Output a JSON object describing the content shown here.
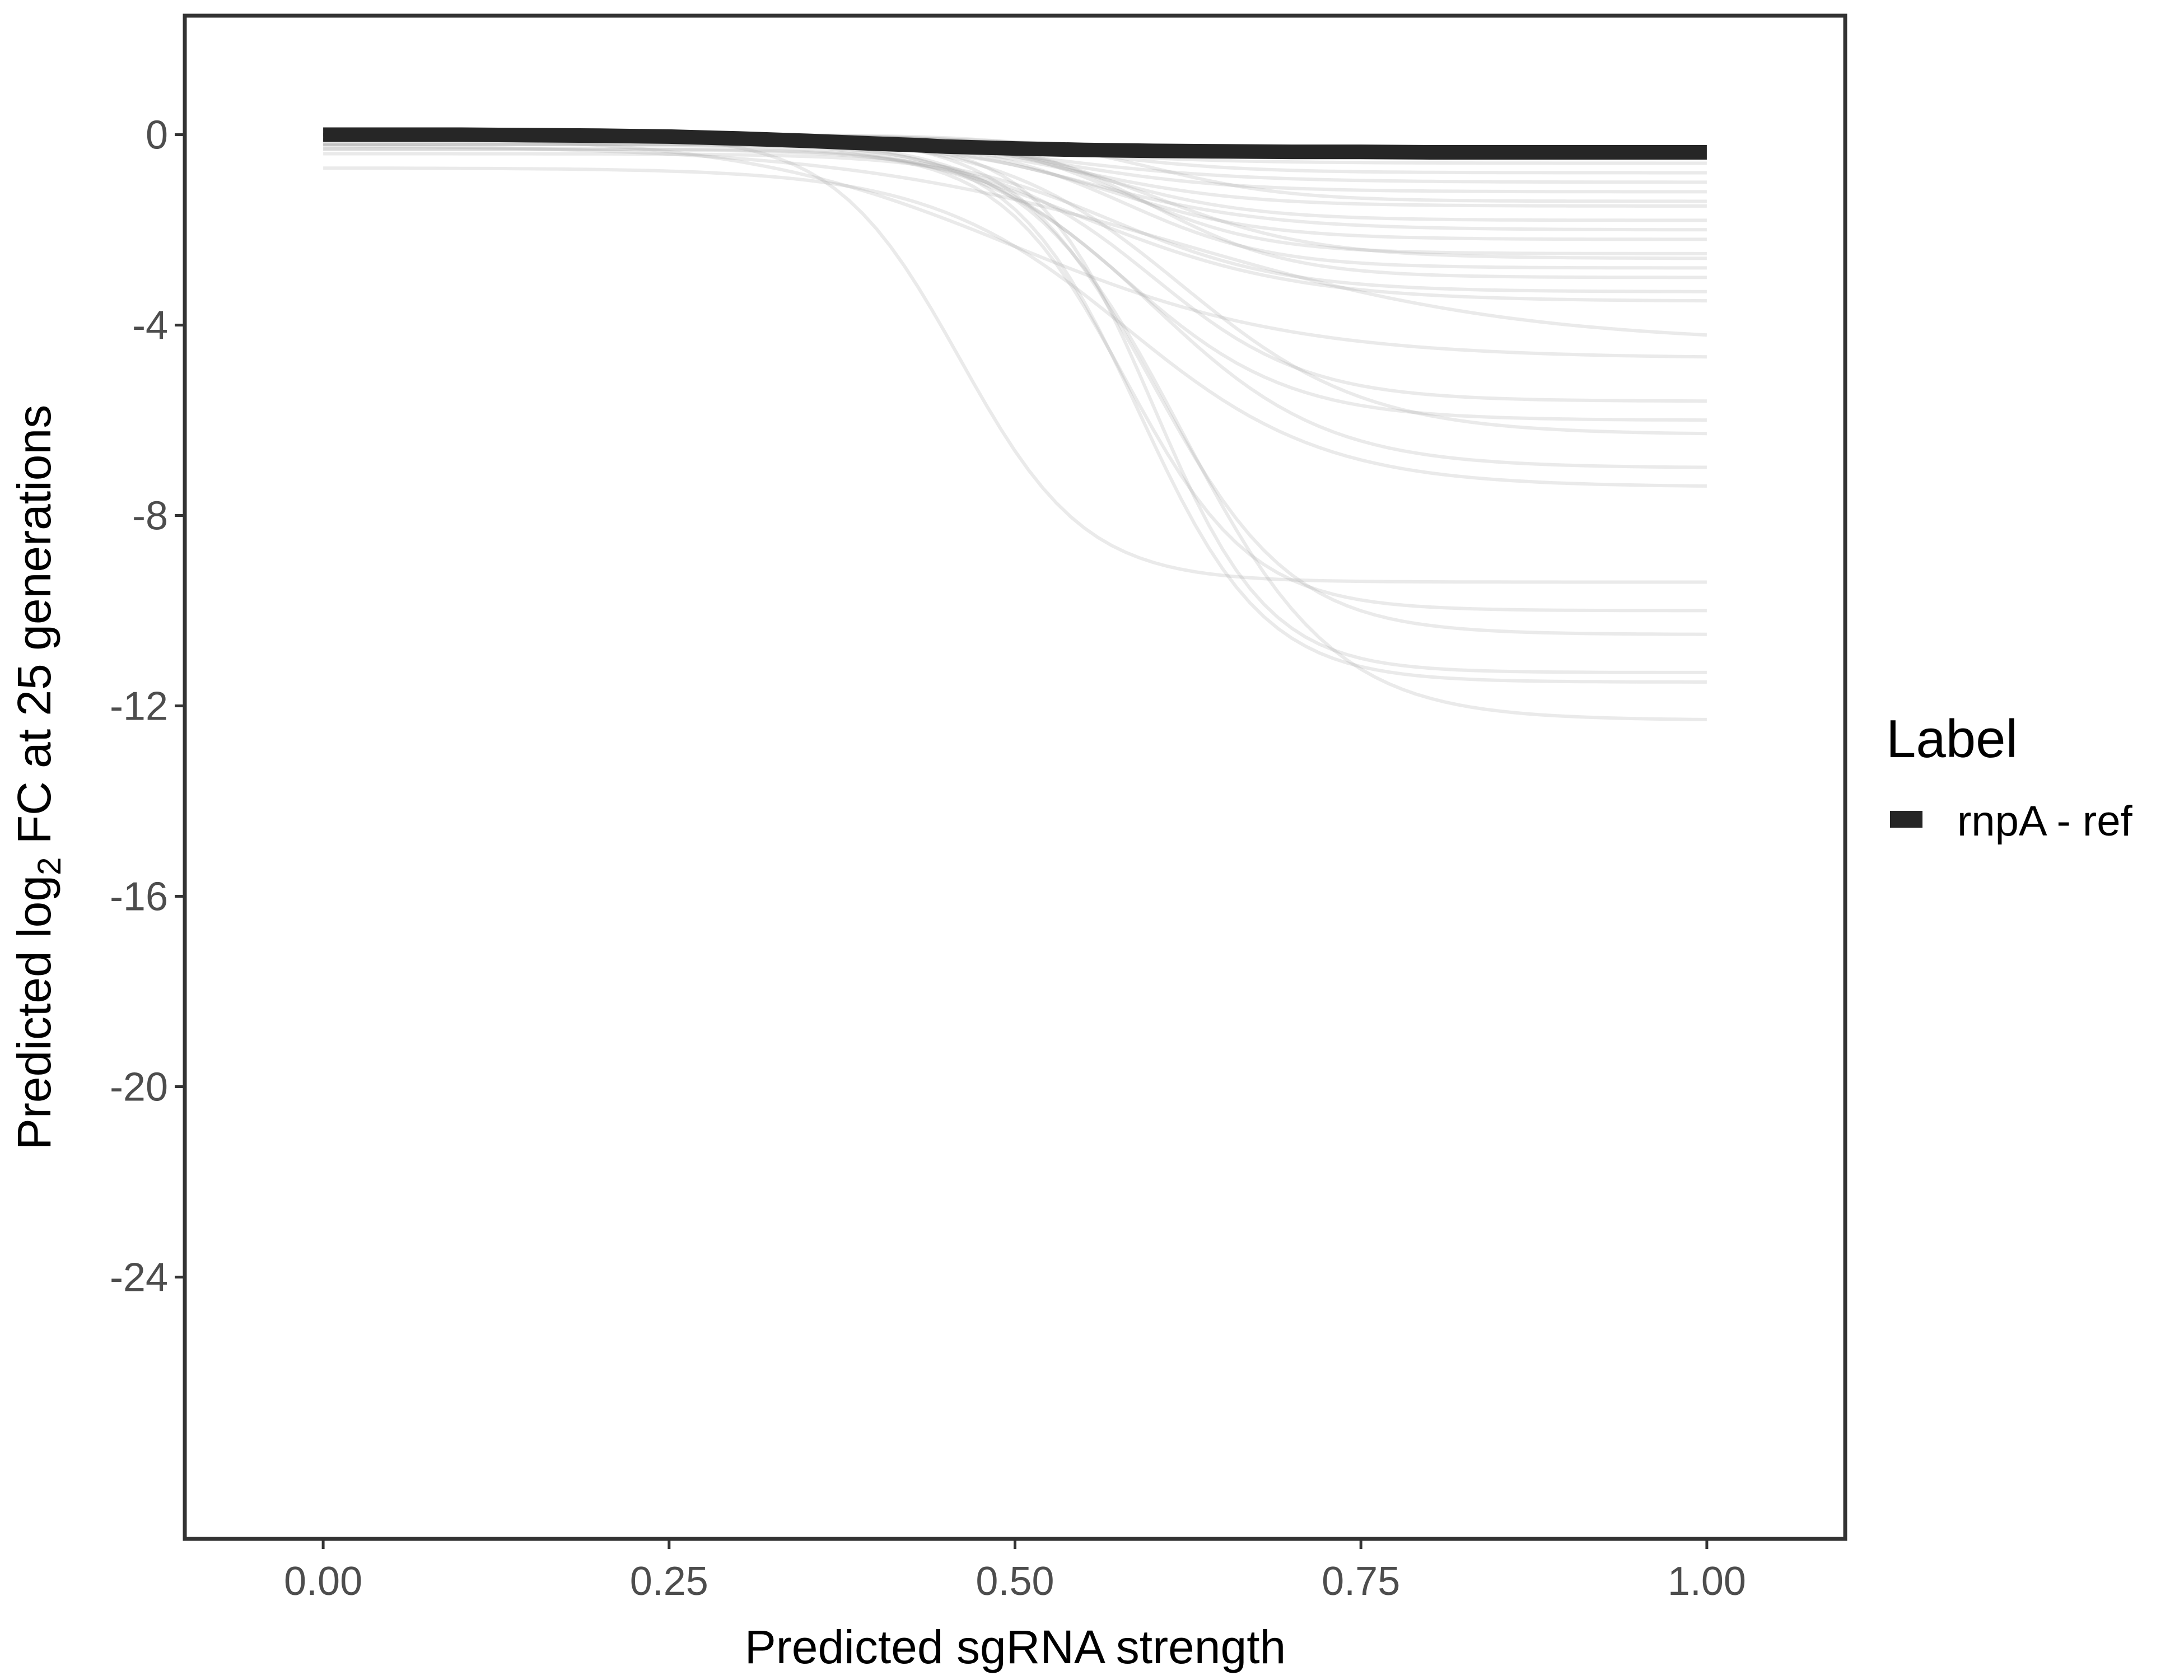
{
  "chart_data": {
    "type": "line",
    "title": "",
    "xlabel": "Predicted sgRNA strength",
    "ylabel_prefix": "Predicted  log",
    "ylabel_subscript": "2",
    "ylabel_suffix": " FC at 25 generations",
    "xlim": [
      -0.1,
      1.1
    ],
    "ylim": [
      -29.5,
      2.5
    ],
    "x_ticks": [
      0,
      0.25,
      0.5,
      0.75,
      1.0
    ],
    "x_tick_labels": [
      "0.00",
      "0.25",
      "0.50",
      "0.75",
      "1.00"
    ],
    "y_ticks": [
      0,
      -4,
      -8,
      -12,
      -16,
      -20,
      -24
    ],
    "y_tick_labels": [
      "0",
      "-4",
      "-8",
      "-12",
      "-16",
      "-20",
      "-24"
    ],
    "grid": false,
    "legend": {
      "title": "Label",
      "position": "right",
      "entries": [
        {
          "label": "rnpA - ref",
          "color": "#262626"
        }
      ]
    },
    "highlight_series": {
      "name": "rnpA - ref",
      "color": "#262626",
      "x": [
        0,
        0.1,
        0.2,
        0.25,
        0.3,
        0.35,
        0.4,
        0.43,
        0.45,
        0.5,
        0.55,
        0.6,
        0.65,
        0.7,
        0.75,
        0.8,
        0.9,
        1.0
      ],
      "y": [
        0,
        0,
        -0.02,
        -0.04,
        -0.08,
        -0.13,
        -0.19,
        -0.22,
        -0.25,
        -0.29,
        -0.32,
        -0.34,
        -0.35,
        -0.36,
        -0.36,
        -0.37,
        -0.37,
        -0.37
      ]
    },
    "background_series": {
      "color": "#9e9e9e",
      "curve_form": "sigmoid",
      "params": [
        {
          "start": 0,
          "plateau": -0.6,
          "midpoint": 0.5,
          "steepness": 15
        },
        {
          "start": 0,
          "plateau": -1.2,
          "midpoint": 0.53,
          "steepness": 16
        },
        {
          "start": -0.1,
          "plateau": -1.5,
          "midpoint": 0.55,
          "steepness": 17
        },
        {
          "start": 0,
          "plateau": -1.0,
          "midpoint": 0.52,
          "steepness": 14
        },
        {
          "start": 0,
          "plateau": -1.8,
          "midpoint": 0.56,
          "steepness": 18
        },
        {
          "start": -0.2,
          "plateau": -2.2,
          "midpoint": 0.57,
          "steepness": 18
        },
        {
          "start": 0,
          "plateau": -2.5,
          "midpoint": 0.58,
          "steepness": 20
        },
        {
          "start": -0.1,
          "plateau": -2.8,
          "midpoint": 0.58,
          "steepness": 19
        },
        {
          "start": 0,
          "plateau": -3.0,
          "midpoint": 0.6,
          "steepness": 20
        },
        {
          "start": -0.3,
          "plateau": -3.3,
          "midpoint": 0.57,
          "steepness": 16
        },
        {
          "start": 0,
          "plateau": -3.5,
          "midpoint": 0.55,
          "steepness": 13
        },
        {
          "start": -0.2,
          "plateau": -4.4,
          "midpoint": 0.62,
          "steepness": 8
        },
        {
          "start": 0,
          "plateau": -4.7,
          "midpoint": 0.5,
          "steepness": 10
        },
        {
          "start": -0.4,
          "plateau": -5.6,
          "midpoint": 0.6,
          "steepness": 18
        },
        {
          "start": -0.1,
          "plateau": -6.0,
          "midpoint": 0.58,
          "steepness": 17
        },
        {
          "start": 0,
          "plateau": -6.3,
          "midpoint": 0.62,
          "steepness": 15
        },
        {
          "start": -0.2,
          "plateau": -7.0,
          "midpoint": 0.6,
          "steepness": 16
        },
        {
          "start": -0.7,
          "plateau": -7.4,
          "midpoint": 0.58,
          "steepness": 14
        },
        {
          "start": 0,
          "plateau": -9.4,
          "midpoint": 0.46,
          "steepness": 22
        },
        {
          "start": -0.3,
          "plateau": -10.0,
          "midpoint": 0.58,
          "steepness": 22
        },
        {
          "start": 0,
          "plateau": -10.5,
          "midpoint": 0.6,
          "steepness": 20
        },
        {
          "start": -0.1,
          "plateau": -11.3,
          "midpoint": 0.6,
          "steepness": 24
        },
        {
          "start": -0.2,
          "plateau": -11.5,
          "midpoint": 0.59,
          "steepness": 22
        },
        {
          "start": -0.1,
          "plateau": -12.3,
          "midpoint": 0.62,
          "steepness": 18
        },
        {
          "start": 0,
          "plateau": -0.3,
          "midpoint": 0.5,
          "steepness": 16
        },
        {
          "start": 0,
          "plateau": -0.8,
          "midpoint": 0.55,
          "steepness": 18
        },
        {
          "start": 0,
          "plateau": -1.4,
          "midpoint": 0.6,
          "steepness": 20
        },
        {
          "start": 0,
          "plateau": -2.0,
          "midpoint": 0.55,
          "steepness": 15
        },
        {
          "start": 0,
          "plateau": -2.6,
          "midpoint": 0.6,
          "steepness": 17
        },
        {
          "start": 0,
          "plateau": -0.5,
          "midpoint": 0.52,
          "steepness": 20
        }
      ]
    }
  }
}
